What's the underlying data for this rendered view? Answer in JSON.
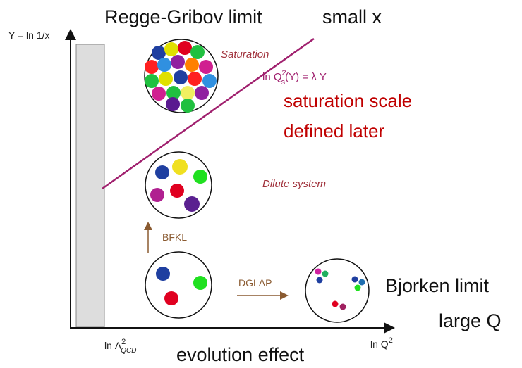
{
  "header": {
    "left": "Regge-Gribov limit",
    "right": "small x"
  },
  "y_axis_label": "Y = ln 1/x",
  "saturation_label": "Saturation",
  "formula": {
    "prefix": "ln Q",
    "sup": "2",
    "sub": "s",
    "suffix": "(Y) = λ Y"
  },
  "note": {
    "line1": "saturation scale",
    "line2": "defined later"
  },
  "dilute_label": "Dilute system",
  "bfkl_label": "BFKL",
  "dglap_label": "DGLAP",
  "bjorken": {
    "line1": "Bjorken limit",
    "line2": "large Q"
  },
  "x_axis": {
    "left": {
      "prefix": "ln Λ",
      "sup": "2",
      "sub": "QCD"
    },
    "right": {
      "prefix": "ln Q",
      "sup": "2"
    }
  },
  "footer": "evolution effect"
}
